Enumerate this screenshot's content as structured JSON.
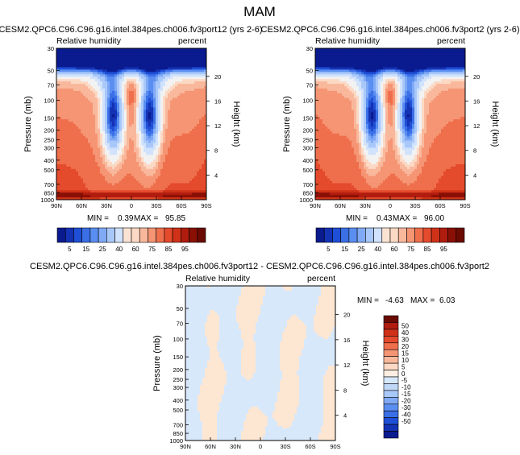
{
  "title": "MAM",
  "colors": {
    "rh_levels": [
      "#0a1a8f",
      "#1432b4",
      "#1f4fd6",
      "#3b6fe6",
      "#5a8ef0",
      "#80aaf5",
      "#a9c8fa",
      "#d0e2fc",
      "#f2f2f2",
      "#fcd9c4",
      "#f9b89c",
      "#f59574",
      "#ef6f4c",
      "#e44a2c",
      "#cf3218",
      "#b01c0e",
      "#8a1006"
    ],
    "rh_bar": [
      "#0a1a8f",
      "#1432b4",
      "#1f4fd6",
      "#3b6fe6",
      "#5a8ef0",
      "#80aaf5",
      "#a9c8fa",
      "#d0e2fc",
      "#fbe3d4",
      "#fcd9c4",
      "#f9b89c",
      "#f59574",
      "#ef6f4c",
      "#e44a2c",
      "#cf3218",
      "#b01c0e",
      "#8a1006",
      "#6a0a02"
    ],
    "diff_bar": [
      "#6a0a02",
      "#b01c0e",
      "#cf3218",
      "#e44a2c",
      "#ef6f4c",
      "#f59574",
      "#f9b89c",
      "#fcd9c4",
      "#fdeee3",
      "#d6e8fb",
      "#c0d8f7",
      "#a9c8fa",
      "#80aaf5",
      "#5a8ef0",
      "#3b6fe6",
      "#1f4fd6",
      "#1432b4",
      "#0a1a8f"
    ],
    "diff_pos": "#fde6d2",
    "diff_neg": "#d8e8fb"
  },
  "chart_data": [
    {
      "type": "heatmap",
      "title": "CESM2.QPC6.C96.C96.g16.intel.384pes.ch006.fv3port12 (yrs 2-6)",
      "left_label": "Relative humidity",
      "right_label": "percent",
      "ylabel": "Pressure (mb)",
      "y2label": "Height (km)",
      "x_ticks": [
        "90N",
        "60N",
        "30N",
        "0",
        "30S",
        "60S",
        "90S"
      ],
      "y_ticks": [
        "30",
        "50",
        "70",
        "100",
        "150",
        "200",
        "250",
        "300",
        "400",
        "500",
        "700",
        "850",
        "1000"
      ],
      "y2_ticks": [
        "20",
        "16",
        "12",
        "8",
        "4"
      ],
      "min_label": "MIN =",
      "min": "0.39",
      "max_label": "MAX =",
      "max": "95.85",
      "colorbar_labels": [
        "5",
        "15",
        "25",
        "40",
        "60",
        "75",
        "85",
        "95"
      ]
    },
    {
      "type": "heatmap",
      "title": "CESM2.QPC6.C96.C96.g16.intel.384pes.ch006.fv3port2 (yrs 2-6)",
      "left_label": "Relative humidity",
      "right_label": "percent",
      "ylabel": "Pressure (mb)",
      "y2label": "Height (km)",
      "x_ticks": [
        "90N",
        "60N",
        "30N",
        "0",
        "30S",
        "60S",
        "90S"
      ],
      "y_ticks": [
        "30",
        "50",
        "70",
        "100",
        "150",
        "200",
        "250",
        "300",
        "400",
        "500",
        "700",
        "850",
        "1000"
      ],
      "y2_ticks": [
        "20",
        "16",
        "12",
        "8",
        "4"
      ],
      "min_label": "MIN =",
      "min": "0.43",
      "max_label": "MAX =",
      "max": "96.00",
      "colorbar_labels": [
        "5",
        "15",
        "25",
        "40",
        "60",
        "75",
        "85",
        "95"
      ]
    },
    {
      "type": "heatmap",
      "title": "CESM2.QPC6.C96.C96.g16.intel.384pes.ch006.fv3port12 - CESM2.QPC6.C96.C96.g16.intel.384pes.ch006.fv3port2",
      "left_label": "Relative humidity",
      "right_label": "percent",
      "ylabel": "Pressure (mb)",
      "y2label": "Height (km)",
      "x_ticks": [
        "90N",
        "60N",
        "30N",
        "0",
        "30S",
        "60S",
        "90S"
      ],
      "y_ticks": [
        "30",
        "50",
        "70",
        "100",
        "150",
        "200",
        "250",
        "300",
        "400",
        "500",
        "700",
        "850",
        "1000"
      ],
      "y2_ticks": [
        "20",
        "16",
        "12",
        "8",
        "4"
      ],
      "min_label": "MIN =",
      "min": "-4.63",
      "max_label": "MAX =",
      "max": "6.03",
      "colorbar_labels": [
        "50",
        "40",
        "30",
        "20",
        "15",
        "10",
        "5",
        "0",
        "-5",
        "-10",
        "-15",
        "-20",
        "-30",
        "-40",
        "-50"
      ]
    }
  ]
}
